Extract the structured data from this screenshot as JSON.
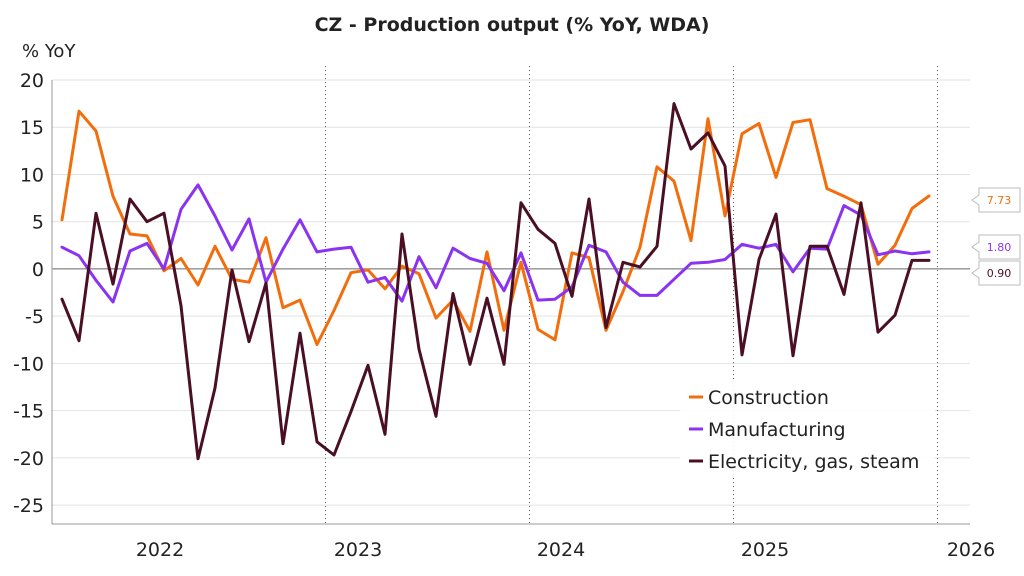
{
  "chart_data": {
    "type": "line",
    "title": "CZ - Production output (% YoY, WDA)",
    "ylabel": "% YoY",
    "xlabel": "",
    "ylim": [
      -27,
      20
    ],
    "yticks": [
      20,
      15,
      10,
      5,
      0,
      -5,
      -10,
      -15,
      -20,
      -25
    ],
    "x_start": "2021-09",
    "x_ticks": [
      "2022",
      "2023",
      "2024",
      "2025",
      "2026"
    ],
    "grid": true,
    "legend_position": "bottom-right",
    "series": [
      {
        "name": "Construction",
        "color": "#f26d0c",
        "end_label": "7.73",
        "values": [
          5.2,
          16.7,
          14.6,
          7.7,
          3.7,
          3.5,
          -0.2,
          1.1,
          -1.7,
          2.4,
          -1.1,
          -1.4,
          3.3,
          -4.1,
          -3.3,
          -8.0,
          -4.4,
          -0.4,
          -0.1,
          -2.1,
          0.3,
          -0.5,
          -5.2,
          -3.3,
          -6.6,
          1.8,
          -6.5,
          0.7,
          -6.4,
          -7.5,
          1.7,
          1.2,
          -6.5,
          -2.4,
          2.3,
          10.8,
          9.3,
          3.0,
          15.9,
          5.6,
          14.3,
          15.4,
          9.7,
          15.5,
          15.8,
          8.5,
          7.7,
          6.8,
          0.5,
          2.5,
          6.4,
          7.73
        ]
      },
      {
        "name": "Manufacturing",
        "color": "#8a33f0",
        "end_label": "1.80",
        "values": [
          2.3,
          1.4,
          -1.2,
          -3.5,
          1.9,
          2.7,
          0.0,
          6.3,
          8.9,
          5.6,
          2.0,
          5.3,
          -1.4,
          2.1,
          5.2,
          1.8,
          2.1,
          2.3,
          -1.4,
          -0.9,
          -3.4,
          1.3,
          -2.0,
          2.2,
          1.1,
          0.6,
          -2.3,
          1.7,
          -3.3,
          -3.2,
          -1.9,
          2.5,
          1.8,
          -1.4,
          -2.8,
          -2.8,
          -1.1,
          0.6,
          0.7,
          1.0,
          2.6,
          2.2,
          2.6,
          -0.3,
          2.2,
          2.1,
          6.7,
          5.7,
          1.5,
          1.9,
          1.6,
          1.8
        ]
      },
      {
        "name": "Electricity, gas, steam",
        "color": "#4a0f25",
        "end_label": "0.90",
        "values": [
          -3.2,
          -7.6,
          5.9,
          -1.6,
          7.4,
          5.0,
          5.9,
          -3.9,
          -20.1,
          -12.6,
          -0.1,
          -7.7,
          -1.5,
          -18.5,
          -6.8,
          -18.3,
          -19.7,
          -15.1,
          -10.2,
          -17.5,
          3.7,
          -8.5,
          -15.6,
          -2.6,
          -10.1,
          -3.1,
          -10.1,
          7.0,
          4.2,
          2.7,
          -2.9,
          7.4,
          -6.2,
          0.7,
          0.2,
          2.4,
          17.5,
          12.7,
          14.4,
          10.9,
          -9.1,
          1.0,
          5.8,
          -9.2,
          2.4,
          2.4,
          -2.7,
          7.0,
          -6.7,
          -4.9,
          0.9,
          0.9
        ]
      }
    ]
  }
}
